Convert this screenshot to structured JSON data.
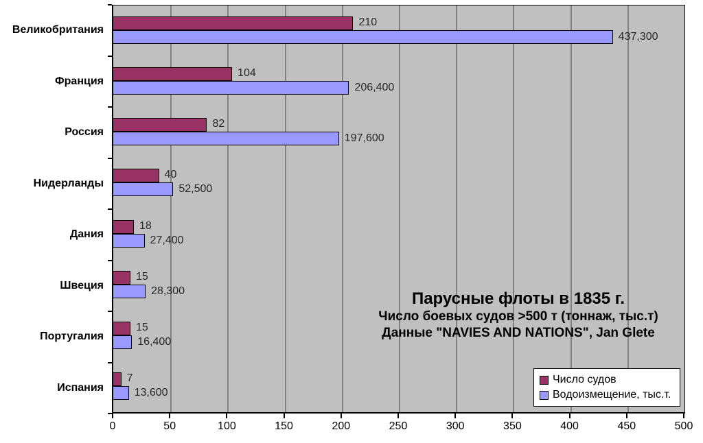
{
  "chart_data": {
    "type": "bar",
    "orientation": "horizontal",
    "title": "Парусные флоты в 1835 г.",
    "subtitle1": "Число боевых судов >500 т (тоннаж, тыс.т)",
    "subtitle2": "Данные \"NAVIES AND NATIONS\", Jan Glete",
    "categories": [
      "Великобритания",
      "Франция",
      "Россия",
      "Нидерланды",
      "Дания",
      "Швеция",
      "Португалия",
      "Испания"
    ],
    "series": [
      {
        "name": "Число судов",
        "color": "#993366",
        "values": [
          210,
          104,
          82,
          40,
          18,
          15,
          15,
          7
        ],
        "labels": [
          "210",
          "104",
          "82",
          "40",
          "18",
          "15",
          "15",
          "7"
        ]
      },
      {
        "name": "Водоизмещение, тыс.т.",
        "color": "#9999ff",
        "values": [
          437.3,
          206.4,
          197.6,
          52.5,
          27.4,
          28.3,
          16.4,
          13.6
        ],
        "labels": [
          "437,300",
          "206,400",
          "197,600",
          "52,500",
          "27,400",
          "28,300",
          "16,400",
          "13,600"
        ]
      }
    ],
    "x_axis": {
      "min": 0,
      "max": 500,
      "step": 50,
      "tick_labels": [
        "0",
        "50",
        "100",
        "150",
        "200",
        "250",
        "300",
        "350",
        "400",
        "450",
        "500"
      ]
    },
    "xlabel": "",
    "ylabel": "",
    "grid": "vertical",
    "legend_position": "bottom-right",
    "colors": {
      "plot_background": "#c0c0c0",
      "gridline": "#808080",
      "bar_border": "#000000",
      "data_label": "#262626"
    }
  }
}
